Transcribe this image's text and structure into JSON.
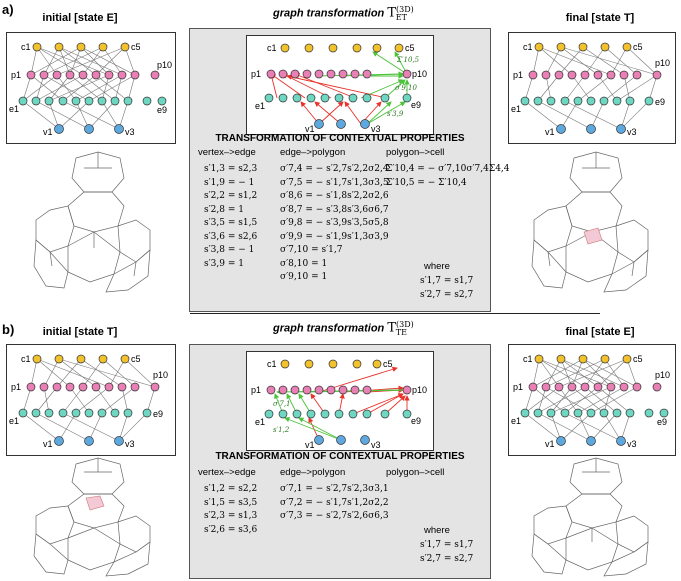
{
  "panel_a": {
    "letter": "a)",
    "left_title": "initial [state E]",
    "right_title": "final [state T]",
    "center_title": "graph transformation",
    "center_symbol": "T",
    "center_sup": "(3D)",
    "center_sub": "ET",
    "tcp_title": "TRANSFORMATION OF CONTEXTUAL PROPERTIES",
    "col1_head": "vertex–>edge",
    "col2_head": "edge–>polygon",
    "col3_head": "polygon–>cell",
    "col1": [
      "s′1,3 = s2,3",
      "s′1,9 = − 1",
      "s′2,2 = s1,2",
      "s′2,8 = 1",
      "s′3,5 = s1,5",
      "s′3,6 = s2,6",
      "s′3,8 = − 1",
      "s′3,9 = 1"
    ],
    "col2": [
      "σ′7,4 = − s′2,7s′2,2σ2,4",
      "σ′7,5 = − s′1,7s′1,3σ3,5",
      "σ′8,6 = − s′1,8s′2,2σ2,6",
      "σ′8,7 = − s′3,8s′3,6σ6,7",
      "σ′9,8 = − s′3,9s′3,5σ5,8",
      "σ′9,9 = − s′1,9s′1,3σ3,9",
      "σ′7,10 = s′1,7",
      "σ′8,10 = 1",
      "σ′9,10 = 1"
    ],
    "col3": [
      "Σ′10,4 = − σ′7,10σ′7,4Σ4,4",
      "Σ′10,5 = − Σ′10,4"
    ],
    "where": "where",
    "where_eqs": [
      "s′1,7 = s1,7",
      "s′2,7 = s2,7"
    ],
    "graph_annotations": [
      "Σ′10,5",
      "σ′9,10",
      "s′3,9"
    ]
  },
  "panel_b": {
    "letter": "b)",
    "left_title": "initial [state T]",
    "right_title": "final [state E]",
    "center_title": "graph transformation",
    "center_symbol": "T",
    "center_sup": "(3D)",
    "center_sub": "TE",
    "tcp_title": "TRANSFORMATION OF CONTEXTUAL PROPERTIES",
    "col1_head": "vertex–>edge",
    "col2_head": "edge–>polygon",
    "col3_head": "polygon–>cell",
    "col1": [
      "s′1,2 = s2,2",
      "s′1,5 = s3,5",
      "s′2,3 = s1,3",
      "s′2,6 = s3,6"
    ],
    "col2": [
      "σ′7,1 = − s′2,7s′2,3σ3,1",
      "σ′7,2 = − s′1,7s′1,2σ2,2",
      "σ′7,3 = − s′2,7s′2,6σ6,3"
    ],
    "where": "where",
    "where_eqs": [
      "s′1,7 = s1,7",
      "s′2,7 = s2,7"
    ],
    "graph_annotations": [
      "σ′7,1",
      "s′1,2"
    ]
  },
  "labels": {
    "c1": "c1",
    "c5": "c5",
    "p1": "p1",
    "p10": "p10",
    "e1": "e1",
    "e9": "e9",
    "v1": "v1",
    "v3": "v3"
  },
  "colors": {
    "cell": "#f2c12e",
    "polygon": "#e87fb5",
    "edge": "#6fd6c2",
    "vertex": "#5ea8e0",
    "red_arrow": "#e8312a",
    "green_arrow": "#4cc23a",
    "gray_box": "#e4e4e4"
  }
}
